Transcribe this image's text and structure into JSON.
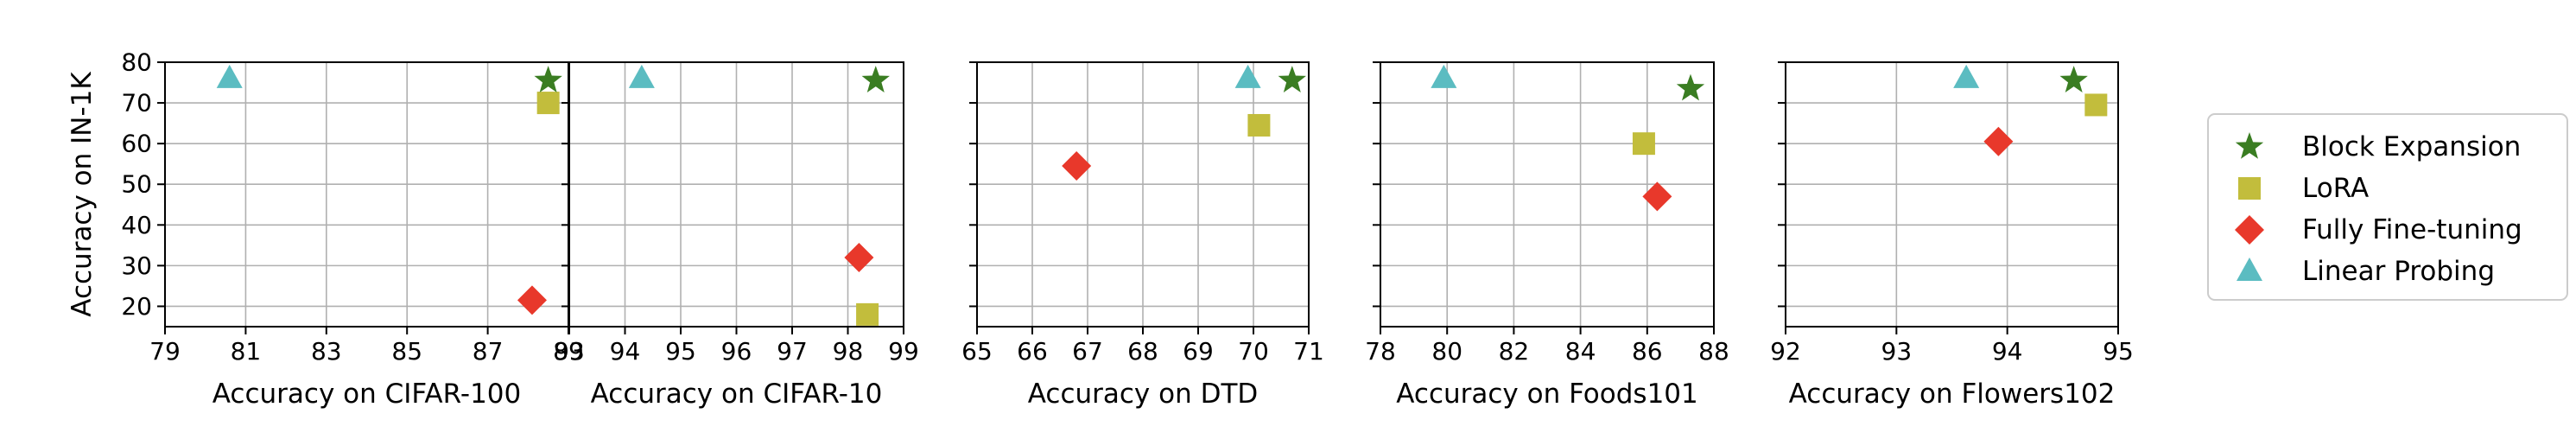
{
  "chart_data": [
    {
      "type": "scatter",
      "title": "",
      "xlabel": "Accuracy on CIFAR-100",
      "ylabel": "Accuracy on IN-1K",
      "xlim": [
        79,
        89
      ],
      "ylim": [
        15,
        80
      ],
      "xticks": [
        "79",
        "81",
        "83",
        "85",
        "87",
        "89"
      ],
      "yticks": [
        "20",
        "30",
        "40",
        "50",
        "60",
        "70",
        "80"
      ],
      "grid": true,
      "series": [
        {
          "name": "Block Expansion",
          "x": 88.5,
          "y": 75.5
        },
        {
          "name": "LoRA",
          "x": 88.5,
          "y": 70.0
        },
        {
          "name": "Fully Fine-tuning",
          "x": 88.1,
          "y": 21.5
        },
        {
          "name": "Linear Probing",
          "x": 80.6,
          "y": 76.0
        }
      ]
    },
    {
      "type": "scatter",
      "title": "",
      "xlabel": "Accuracy on CIFAR-10",
      "ylabel": "",
      "xlim": [
        93,
        99
      ],
      "ylim": [
        15,
        80
      ],
      "xticks": [
        "93",
        "94",
        "95",
        "96",
        "97",
        "98",
        "99"
      ],
      "yticks": [],
      "grid": true,
      "series": [
        {
          "name": "Block Expansion",
          "x": 98.5,
          "y": 75.5
        },
        {
          "name": "LoRA",
          "x": 98.35,
          "y": 18.0
        },
        {
          "name": "Fully Fine-tuning",
          "x": 98.2,
          "y": 32.0
        },
        {
          "name": "Linear Probing",
          "x": 94.3,
          "y": 76.0
        }
      ]
    },
    {
      "type": "scatter",
      "title": "",
      "xlabel": "Accuracy on DTD",
      "ylabel": "",
      "xlim": [
        65,
        71
      ],
      "ylim": [
        15,
        80
      ],
      "xticks": [
        "65",
        "66",
        "67",
        "68",
        "69",
        "70",
        "71"
      ],
      "yticks": [],
      "grid": true,
      "series": [
        {
          "name": "Block Expansion",
          "x": 70.7,
          "y": 75.5
        },
        {
          "name": "LoRA",
          "x": 70.1,
          "y": 64.5
        },
        {
          "name": "Fully Fine-tuning",
          "x": 66.8,
          "y": 54.5
        },
        {
          "name": "Linear Probing",
          "x": 69.9,
          "y": 76.0
        }
      ]
    },
    {
      "type": "scatter",
      "title": "",
      "xlabel": "Accuracy on Foods101",
      "ylabel": "",
      "xlim": [
        78,
        88
      ],
      "ylim": [
        15,
        80
      ],
      "xticks": [
        "78",
        "80",
        "82",
        "84",
        "86",
        "88"
      ],
      "yticks": [],
      "grid": true,
      "series": [
        {
          "name": "Block Expansion",
          "x": 87.3,
          "y": 73.5
        },
        {
          "name": "LoRA",
          "x": 85.9,
          "y": 60.0
        },
        {
          "name": "Fully Fine-tuning",
          "x": 86.3,
          "y": 47.0
        },
        {
          "name": "Linear Probing",
          "x": 79.9,
          "y": 76.0
        }
      ]
    },
    {
      "type": "scatter",
      "title": "",
      "xlabel": "Accuracy on Flowers102",
      "ylabel": "",
      "xlim": [
        92,
        95
      ],
      "ylim": [
        15,
        80
      ],
      "xticks": [
        "92",
        "93",
        "94",
        "95"
      ],
      "yticks": [],
      "grid": true,
      "series": [
        {
          "name": "Block Expansion",
          "x": 94.6,
          "y": 75.5
        },
        {
          "name": "LoRA",
          "x": 94.8,
          "y": 69.5
        },
        {
          "name": "Fully Fine-tuning",
          "x": 93.92,
          "y": 60.5
        },
        {
          "name": "Linear Probing",
          "x": 93.63,
          "y": 76.0
        }
      ]
    }
  ],
  "legend": {
    "placement": "right",
    "items": [
      {
        "label": "Block Expansion",
        "marker": "star",
        "color": "#3a7d22"
      },
      {
        "label": "LoRA",
        "marker": "square",
        "color": "#c2bd3c"
      },
      {
        "label": "Fully Fine-tuning",
        "marker": "diamond",
        "color": "#e8382b"
      },
      {
        "label": "Linear Probing",
        "marker": "triangle",
        "color": "#5bbcc1"
      }
    ]
  },
  "colors": {
    "Block Expansion": "#3a7d22",
    "LoRA": "#c2bd3c",
    "Fully Fine-tuning": "#e8382b",
    "Linear Probing": "#5bbcc1",
    "grid": "#b0b0b0"
  }
}
